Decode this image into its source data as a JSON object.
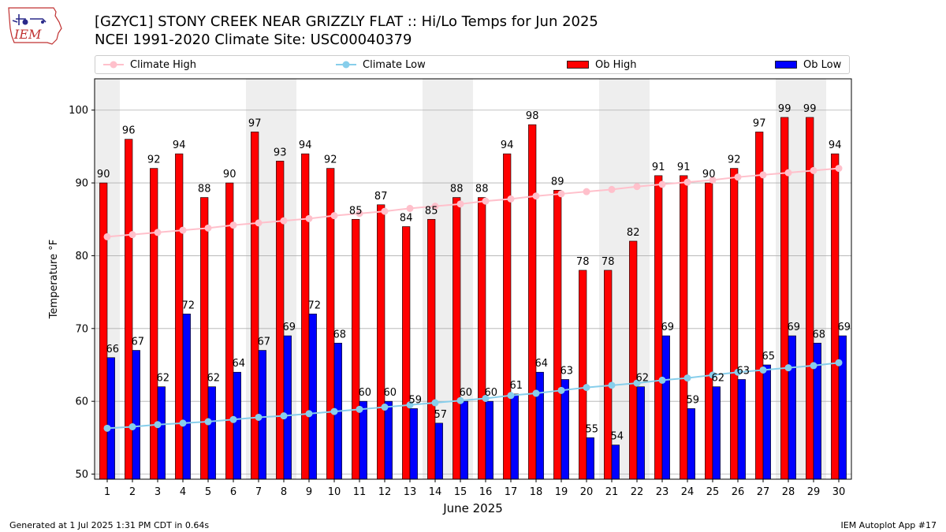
{
  "header": {
    "title_line1": "[GZYC1] STONY CREEK NEAR GRIZZLY FLAT :: Hi/Lo Temps for Jun 2025",
    "title_line2": "NCEI 1991-2020 Climate Site: USC00040379",
    "logo_text": "IEM"
  },
  "footer": {
    "generated": "Generated at 1 Jul 2025 1:31 PM CDT in 0.64s",
    "app": "IEM Autoplot App #17"
  },
  "colors": {
    "ob_high": "#ff0000",
    "ob_low": "#0000ff",
    "climate_high": "#ffc0cb",
    "climate_low": "#87ceeb",
    "weekend_shade": "#eeeeee",
    "grid": "#b0b0b0"
  },
  "chart_data": {
    "type": "bar",
    "title": "[GZYC1] STONY CREEK NEAR GRIZZLY FLAT :: Hi/Lo Temps for Jun 2025",
    "subtitle": "NCEI 1991-2020 Climate Site: USC00040379",
    "xlabel": "June 2025",
    "ylabel": "Temperature °F",
    "ylim": [
      49.3,
      104.3
    ],
    "yticks": [
      50,
      60,
      70,
      80,
      90,
      100
    ],
    "grid": "horizontal",
    "legend_position": "top",
    "categories": [
      "1",
      "2",
      "3",
      "4",
      "5",
      "6",
      "7",
      "8",
      "9",
      "10",
      "11",
      "12",
      "13",
      "14",
      "15",
      "16",
      "17",
      "18",
      "19",
      "20",
      "21",
      "22",
      "23",
      "24",
      "25",
      "26",
      "27",
      "28",
      "29",
      "30"
    ],
    "shaded_days": [
      1,
      7,
      8,
      14,
      15,
      21,
      22,
      28,
      29
    ],
    "series": [
      {
        "name": "Ob High",
        "type": "bar",
        "color": "#ff0000",
        "values": [
          90,
          96,
          92,
          94,
          88,
          90,
          97,
          93,
          94,
          92,
          85,
          87,
          84,
          85,
          88,
          88,
          94,
          98,
          89,
          78,
          78,
          82,
          91,
          91,
          90,
          92,
          97,
          99,
          99,
          94
        ]
      },
      {
        "name": "Ob Low",
        "type": "bar",
        "color": "#0000ff",
        "values": [
          66,
          67,
          62,
          72,
          62,
          64,
          67,
          69,
          72,
          68,
          60,
          60,
          59,
          57,
          60,
          60,
          61,
          64,
          63,
          55,
          54,
          62,
          69,
          59,
          62,
          63,
          65,
          69,
          68,
          69
        ]
      },
      {
        "name": "Climate High",
        "type": "line",
        "color": "#ffc0cb",
        "values": [
          82.6,
          82.9,
          83.2,
          83.5,
          83.8,
          84.2,
          84.5,
          84.8,
          85.1,
          85.5,
          85.8,
          86.1,
          86.5,
          86.8,
          87.1,
          87.5,
          87.8,
          88.2,
          88.5,
          88.8,
          89.1,
          89.5,
          89.8,
          90.1,
          90.4,
          90.8,
          91.1,
          91.4,
          91.7,
          92.0
        ]
      },
      {
        "name": "Climate Low",
        "type": "line",
        "color": "#87ceeb",
        "values": [
          56.3,
          56.5,
          56.8,
          57.0,
          57.2,
          57.5,
          57.8,
          58.0,
          58.3,
          58.6,
          58.9,
          59.2,
          59.5,
          59.8,
          60.1,
          60.4,
          60.8,
          61.1,
          61.5,
          61.9,
          62.2,
          62.5,
          62.9,
          63.2,
          63.6,
          64.0,
          64.3,
          64.6,
          64.9,
          65.3
        ]
      }
    ]
  }
}
